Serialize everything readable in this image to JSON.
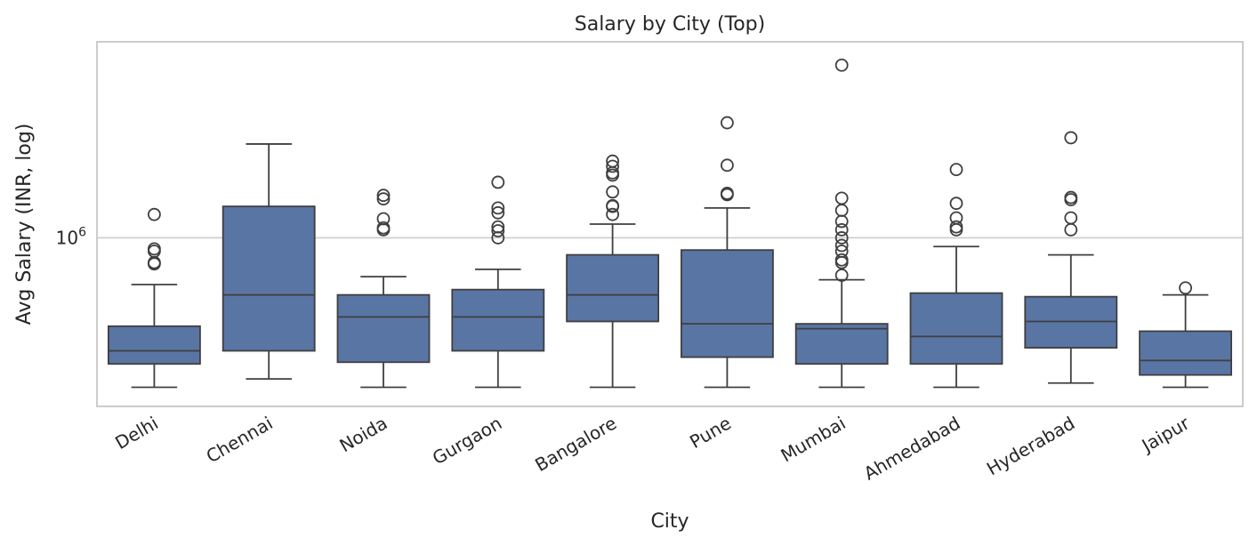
{
  "chart_data": {
    "type": "box",
    "title": "Salary by City (Top)",
    "xlabel": "City",
    "ylabel": "Avg Salary (INR, log)",
    "yscale": "log",
    "ylim": [
      200000,
      6500000
    ],
    "yticks": [
      {
        "value": 1000000,
        "base": "10",
        "exp": "6"
      }
    ],
    "grid": "horizontal",
    "box_color": "#5975a4",
    "line_color": "#3f3f3f",
    "categories": [
      "Delhi",
      "Chennai",
      "Noida",
      "Gurgaon",
      "Bangalore",
      "Pune",
      "Mumbai",
      "Ahmedabad",
      "Hyderabad",
      "Jaipur"
    ],
    "boxes": [
      {
        "category": "Delhi",
        "whislo": 240000,
        "q1": 300000,
        "med": 340000,
        "q3": 430000,
        "whishi": 640000,
        "fliers": [
          780000,
          790000,
          880000,
          900000,
          1250000
        ]
      },
      {
        "category": "Chennai",
        "whislo": 260000,
        "q1": 340000,
        "med": 580000,
        "q3": 1350000,
        "whishi": 2450000,
        "fliers": []
      },
      {
        "category": "Noida",
        "whislo": 240000,
        "q1": 305000,
        "med": 470000,
        "q3": 580000,
        "whishi": 690000,
        "fliers": [
          1080000,
          1100000,
          1200000,
          1450000,
          1500000
        ]
      },
      {
        "category": "Gurgaon",
        "whislo": 240000,
        "q1": 340000,
        "med": 470000,
        "q3": 610000,
        "whishi": 740000,
        "fliers": [
          1000000,
          1070000,
          1110000,
          1270000,
          1330000,
          1700000
        ]
      },
      {
        "category": "Bangalore",
        "whislo": 240000,
        "q1": 450000,
        "med": 580000,
        "q3": 850000,
        "whishi": 1140000,
        "fliers": [
          1250000,
          1350000,
          1360000,
          1550000,
          1820000,
          1860000,
          1980000,
          2080000
        ]
      },
      {
        "category": "Pune",
        "whislo": 240000,
        "q1": 320000,
        "med": 440000,
        "q3": 890000,
        "whishi": 1330000,
        "fliers": [
          1510000,
          1530000,
          2000000,
          3000000
        ]
      },
      {
        "category": "Mumbai",
        "whislo": 240000,
        "q1": 300000,
        "med": 420000,
        "q3": 440000,
        "whishi": 670000,
        "fliers": [
          700000,
          790000,
          810000,
          880000,
          930000,
          1000000,
          1080000,
          1170000,
          1300000,
          1460000,
          5200000
        ]
      },
      {
        "category": "Ahmedabad",
        "whislo": 240000,
        "q1": 300000,
        "med": 390000,
        "q3": 590000,
        "whishi": 920000,
        "fliers": [
          1080000,
          1110000,
          1210000,
          1390000,
          1920000
        ]
      },
      {
        "category": "Hyderabad",
        "whislo": 250000,
        "q1": 350000,
        "med": 450000,
        "q3": 570000,
        "whishi": 850000,
        "fliers": [
          1080000,
          1210000,
          1440000,
          1470000,
          2600000
        ]
      },
      {
        "category": "Jaipur",
        "whislo": 240000,
        "q1": 270000,
        "med": 310000,
        "q3": 410000,
        "whishi": 580000,
        "fliers": [
          620000
        ]
      }
    ]
  }
}
